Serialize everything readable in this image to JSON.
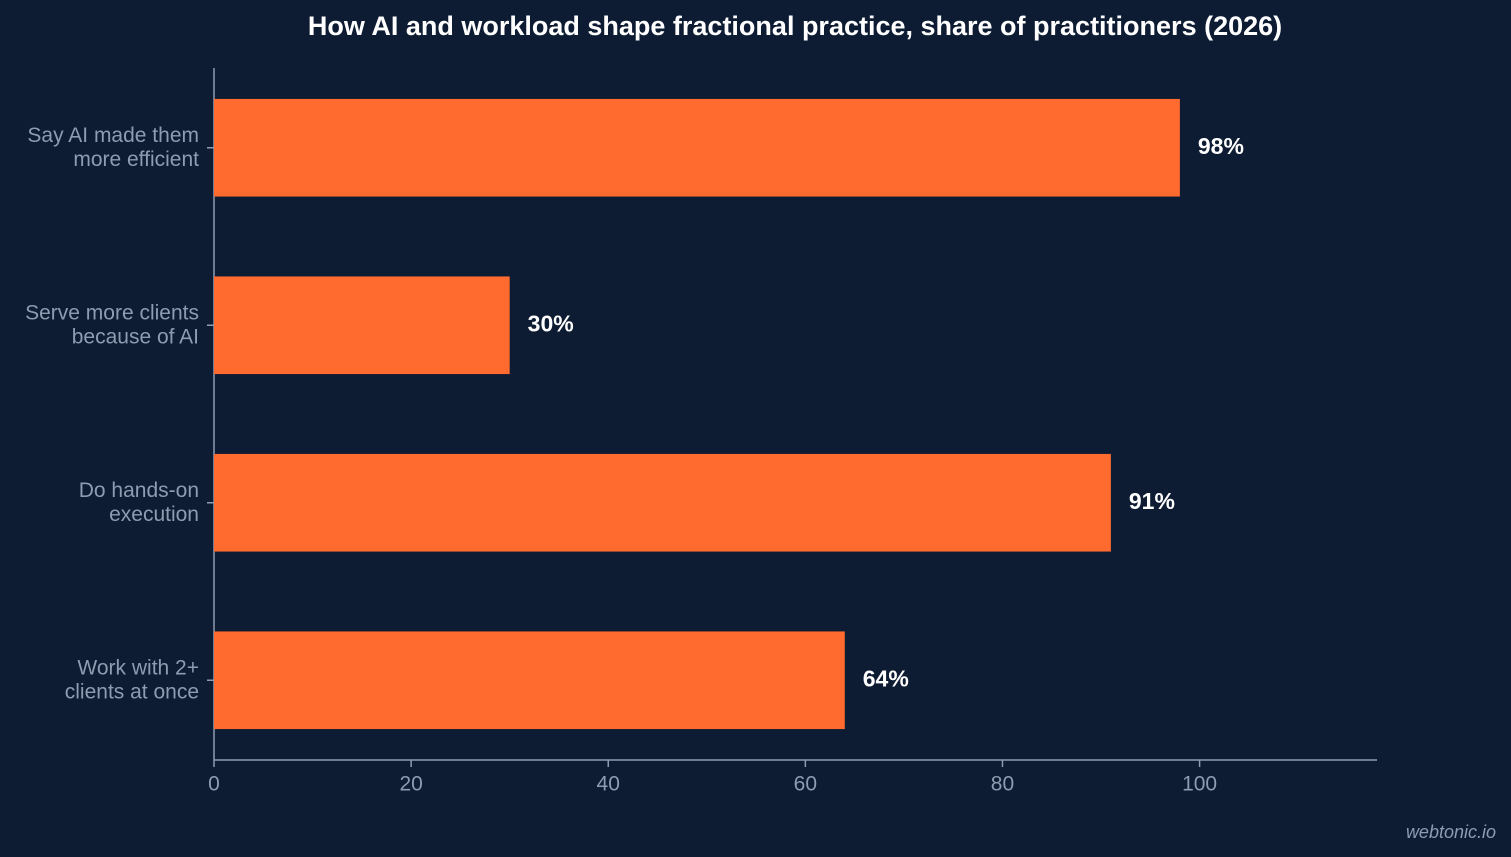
{
  "chart_data": {
    "type": "barh",
    "title": "How AI and workload shape fractional practice, share of practitioners (2026)",
    "categories": [
      "Say AI made them\nmore efficient",
      "Serve more clients\nbecause of AI",
      "Do hands-on\nexecution",
      "Work with 2+\nclients at once"
    ],
    "values": [
      98,
      30,
      91,
      64
    ],
    "value_labels": [
      "98%",
      "30%",
      "91%",
      "64%"
    ],
    "color": "#ff6b2e",
    "xlim": [
      0,
      118
    ],
    "xticks": [
      0,
      20,
      40,
      60,
      80,
      100
    ],
    "grid": false,
    "watermark": "webtonic.io"
  }
}
